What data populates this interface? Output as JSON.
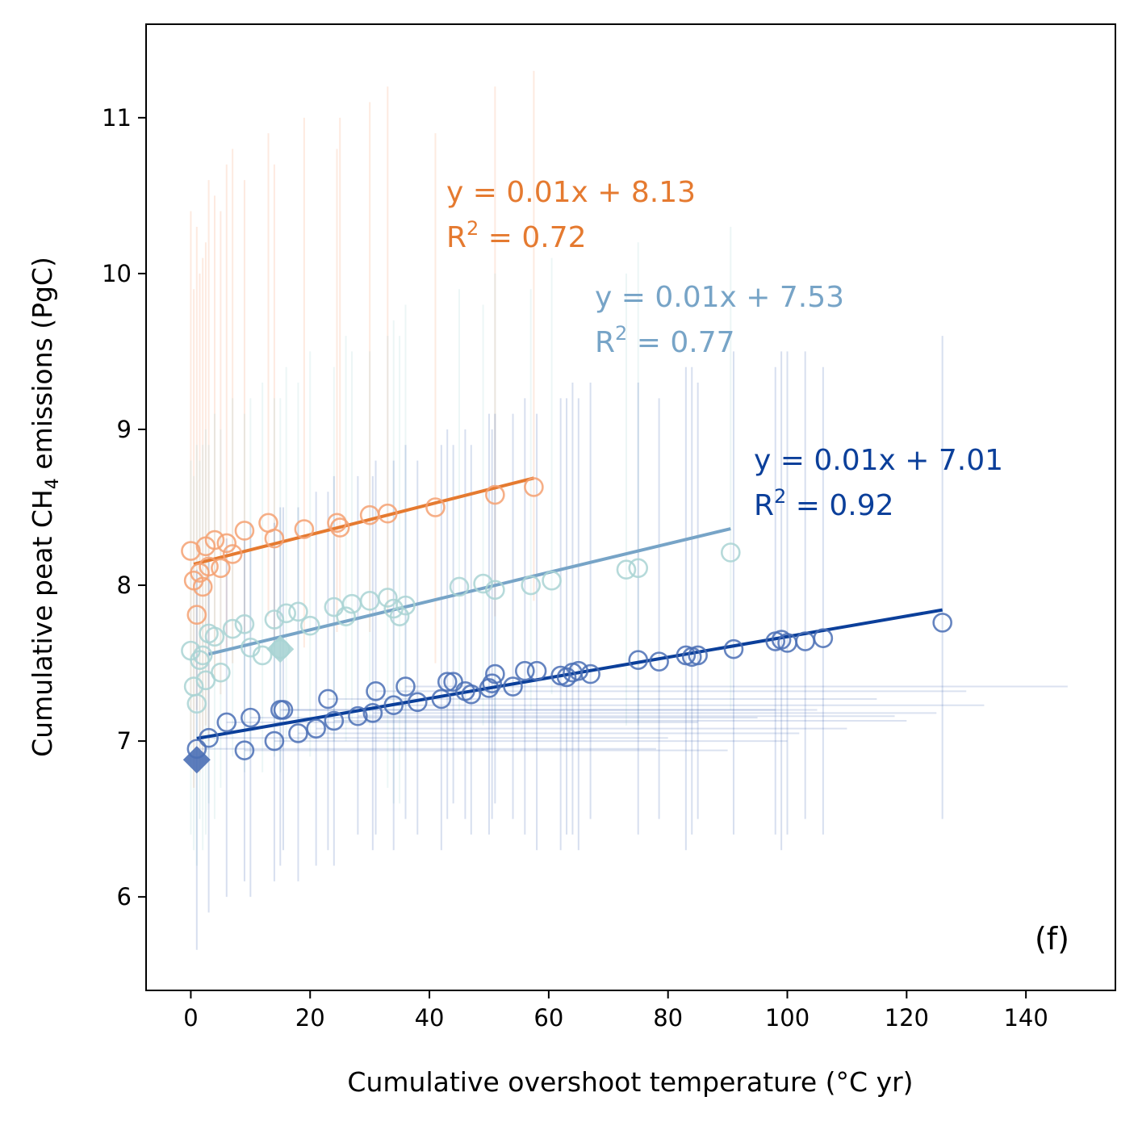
{
  "chart_data": {
    "type": "scatter",
    "xlabel": "Cumulative overshoot temperature (°C yr)",
    "ylabel_parts": [
      "Cumulative peat CH",
      "4",
      " emissions (PgC)"
    ],
    "panel_label": "(f)",
    "xlim": [
      -7.5,
      155
    ],
    "ylim": [
      5.4,
      11.6
    ],
    "xticks": [
      0,
      20,
      40,
      60,
      80,
      100,
      120,
      140
    ],
    "yticks": [
      6,
      7,
      8,
      9,
      10,
      11
    ],
    "grid": false,
    "legend": "none",
    "series": [
      {
        "color": "#F4A172",
        "line_color": "#E57A30",
        "fit": {
          "x": [
            0.5,
            57.5
          ],
          "slope": 0.0097,
          "intercept": 8.13
        },
        "equation": "y = 0.01x + 8.13",
        "r2_prefix": "R",
        "r2_sup": "2",
        "r2_suffix": " = 0.72",
        "x": [
          0,
          0.5,
          1,
          1.5,
          2,
          2.5,
          3,
          4,
          5,
          6,
          7,
          9,
          13,
          14,
          19,
          24.5,
          25,
          30,
          33,
          41,
          51,
          57.5
        ],
        "y": [
          8.22,
          8.03,
          7.81,
          8.08,
          7.99,
          8.25,
          8.12,
          8.29,
          8.11,
          8.27,
          8.2,
          8.35,
          8.4,
          8.3,
          8.36,
          8.4,
          8.37,
          8.45,
          8.46,
          8.5,
          8.58,
          8.63
        ],
        "err_low": [
          7.0,
          6.7,
          7.2,
          6.8,
          6.9,
          7.1,
          7.0,
          7.4,
          7.3,
          7.6,
          7.5,
          7.7,
          7.8,
          7.6,
          7.6,
          7.7,
          7.9,
          7.7,
          7.8,
          7.5,
          7.8,
          7.9
        ],
        "err_high": [
          10.4,
          9.9,
          10.3,
          10.0,
          10.1,
          10.2,
          10.6,
          10.5,
          10.4,
          10.7,
          10.8,
          10.6,
          10.9,
          10.7,
          11.0,
          10.8,
          11.0,
          11.1,
          11.2,
          10.9,
          11.2,
          11.3
        ]
      },
      {
        "color": "#A9D4D4",
        "line_color": "#77A4C7",
        "fit": {
          "x": [
            3,
            90.5
          ],
          "slope": 0.0092,
          "intercept": 7.53
        },
        "equation": "y = 0.01x + 7.53",
        "r2_prefix": "R",
        "r2_sup": "2",
        "r2_suffix": " = 0.77",
        "x": [
          0,
          0.5,
          1,
          1.5,
          2,
          2.5,
          3,
          4,
          5,
          7,
          9,
          10,
          12,
          14,
          16,
          18,
          20,
          24,
          26,
          27,
          30,
          33,
          34,
          35,
          36,
          45,
          49,
          51,
          57,
          60.5,
          73,
          75,
          90.5,
          15
        ],
        "y": [
          7.58,
          7.35,
          7.24,
          7.52,
          7.55,
          7.39,
          7.69,
          7.67,
          7.44,
          7.72,
          7.75,
          7.6,
          7.55,
          7.78,
          7.82,
          7.83,
          7.74,
          7.86,
          7.8,
          7.88,
          7.9,
          7.92,
          7.85,
          7.8,
          7.87,
          7.99,
          8.01,
          7.97,
          8.0,
          8.03,
          8.1,
          8.11,
          8.21,
          7.59
        ],
        "err_low": [
          6.4,
          6.3,
          6.2,
          6.5,
          6.3,
          6.4,
          6.6,
          6.5,
          6.7,
          6.9,
          6.8,
          6.9,
          6.8,
          6.9,
          7.0,
          7.0,
          6.9,
          7.0,
          7.0,
          7.1,
          7.1,
          6.7,
          6.6,
          6.6,
          7.0,
          7.2,
          7.1,
          7.1,
          7.2,
          7.3,
          7.1,
          7.1,
          7.2,
          6.8
        ],
        "err_high": [
          8.8,
          8.7,
          8.9,
          8.8,
          8.9,
          9.0,
          8.9,
          9.1,
          9.0,
          9.2,
          9.1,
          9.2,
          9.3,
          9.2,
          9.4,
          9.3,
          9.5,
          9.4,
          9.6,
          9.5,
          9.5,
          9.6,
          9.7,
          9.6,
          9.8,
          9.9,
          9.8,
          10.0,
          9.9,
          10.1,
          10.0,
          10.2,
          10.3,
          9.2
        ]
      },
      {
        "color": "#4A6FB5",
        "line_color": "#0B3F9A",
        "fit": {
          "x": [
            1,
            126
          ],
          "slope": 0.0066,
          "intercept": 7.01
        },
        "equation": "y = 0.01x + 7.01",
        "r2_prefix": "R",
        "r2_sup": "2",
        "r2_suffix": " = 0.92",
        "x": [
          1,
          3,
          6,
          9,
          10,
          14,
          15,
          15.5,
          18,
          21,
          23,
          24,
          28,
          30.5,
          31,
          34,
          36,
          38,
          42,
          43,
          44,
          46,
          47,
          50,
          50.5,
          51,
          54,
          56,
          58,
          62,
          63,
          64,
          65,
          67,
          75,
          78.5,
          83,
          84,
          85,
          91,
          98,
          99,
          100,
          103,
          106,
          126
        ],
        "y": [
          6.95,
          7.02,
          7.12,
          6.94,
          7.15,
          7.0,
          7.2,
          7.2,
          7.05,
          7.08,
          7.27,
          7.13,
          7.16,
          7.18,
          7.32,
          7.23,
          7.35,
          7.25,
          7.27,
          7.38,
          7.38,
          7.32,
          7.3,
          7.34,
          7.37,
          7.43,
          7.35,
          7.45,
          7.45,
          7.42,
          7.41,
          7.44,
          7.45,
          7.43,
          7.52,
          7.51,
          7.55,
          7.54,
          7.55,
          7.59,
          7.64,
          7.65,
          7.63,
          7.64,
          7.66,
          7.76
        ],
        "err_low": [
          5.66,
          5.9,
          6.0,
          6.1,
          6.0,
          6.1,
          6.2,
          6.3,
          6.1,
          6.2,
          6.3,
          6.2,
          6.4,
          6.3,
          6.4,
          6.3,
          6.5,
          6.4,
          6.3,
          6.5,
          6.6,
          6.5,
          6.4,
          6.4,
          6.5,
          6.6,
          6.5,
          6.4,
          6.3,
          6.3,
          6.4,
          6.4,
          6.3,
          6.5,
          6.4,
          6.5,
          6.3,
          6.4,
          6.5,
          6.4,
          6.4,
          6.3,
          6.4,
          6.5,
          6.4,
          6.5
        ],
        "err_high": [
          8.1,
          8.2,
          8.3,
          8.3,
          8.4,
          8.4,
          8.5,
          8.5,
          8.5,
          8.6,
          8.6,
          8.7,
          8.7,
          8.7,
          8.8,
          8.8,
          8.9,
          8.8,
          8.9,
          9.0,
          8.9,
          9.0,
          8.9,
          9.1,
          9.0,
          9.1,
          9.1,
          9.2,
          9.1,
          9.2,
          9.2,
          9.3,
          9.2,
          9.3,
          9.3,
          9.2,
          9.4,
          9.4,
          9.3,
          9.5,
          9.4,
          9.5,
          9.5,
          9.5,
          9.4,
          9.6
        ],
        "xerr_high": [
          78,
          80,
          85,
          90,
          95,
          100,
          98,
          105,
          102,
          110,
          115,
          120,
          118,
          125,
          130,
          133,
          147
        ]
      }
    ],
    "diamond_markers": [
      {
        "x": 1,
        "y": 6.88,
        "color": "#4A6FB5"
      },
      {
        "x": 15,
        "y": 7.59,
        "color": "#A9D4D4"
      }
    ]
  }
}
